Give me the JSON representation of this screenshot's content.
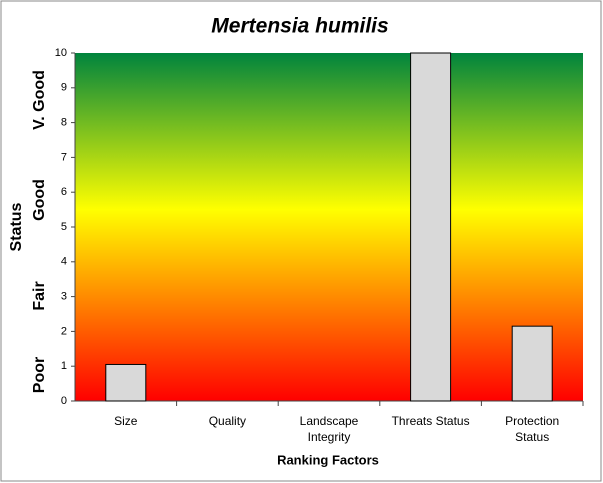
{
  "chart_data": {
    "type": "bar",
    "title": "Mertensia humilis",
    "categories": [
      "Size",
      "Quality",
      "Landscape\nIntegrity",
      "Threats Status",
      "Protection\nStatus"
    ],
    "values": [
      1.05,
      0,
      0,
      10,
      2.15
    ],
    "color": "#d9d9d9",
    "x_label": "Ranking Factors",
    "y_label": "Status",
    "status_labels": [
      "Poor",
      "Fair",
      "Good",
      "V. Good"
    ],
    "ylim": [
      0,
      10
    ],
    "yticks": [
      0,
      1,
      2,
      3,
      4,
      5,
      6,
      7,
      8,
      9,
      10
    ],
    "background_gradient": [
      "#00843d",
      "#ffff00",
      "#ff0000"
    ]
  }
}
